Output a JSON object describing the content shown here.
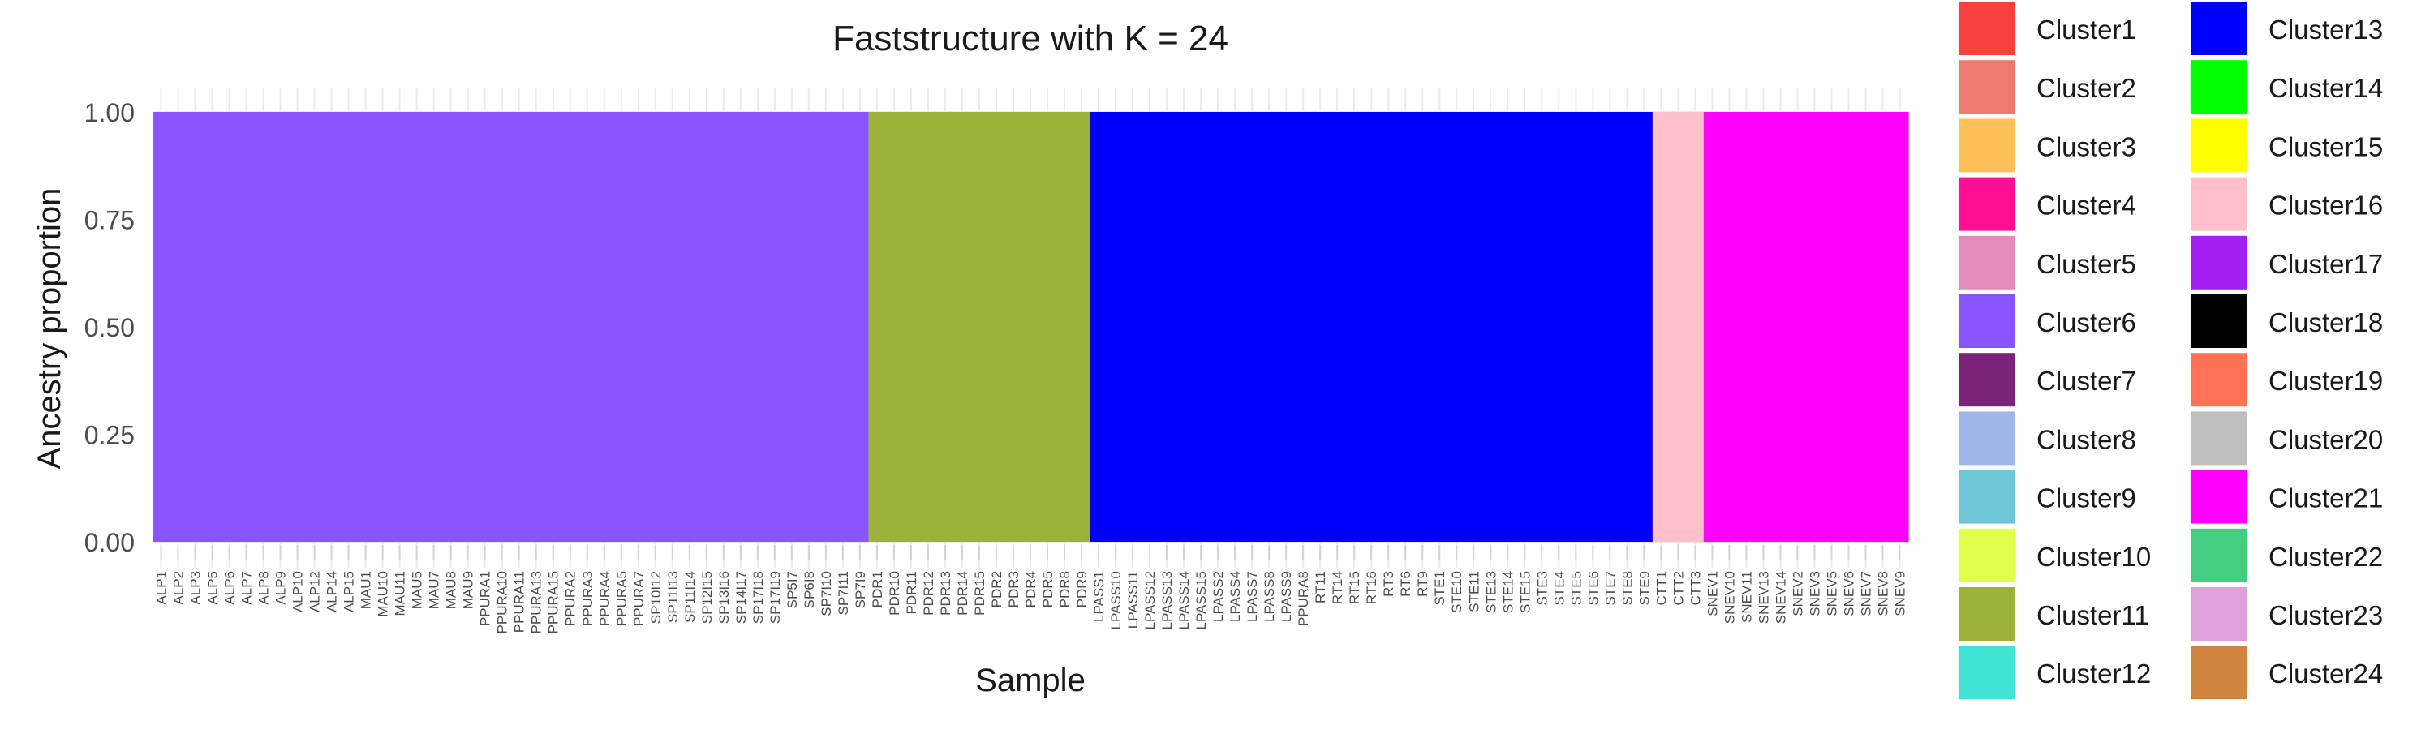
{
  "chart_data": {
    "type": "bar",
    "title": "Faststructure with K = 24",
    "xlabel": "Sample",
    "ylabel": "Ancestry proportion",
    "ylim": [
      0,
      1
    ],
    "yticks": [
      "0.00",
      "0.25",
      "0.50",
      "0.75",
      "1.00"
    ],
    "grid": true,
    "legend_position": "right",
    "stacked": true,
    "clusters": [
      {
        "name": "Cluster1",
        "color": "#F8413C"
      },
      {
        "name": "Cluster2",
        "color": "#EB7B70"
      },
      {
        "name": "Cluster3",
        "color": "#FFC05A"
      },
      {
        "name": "Cluster4",
        "color": "#FF0F92"
      },
      {
        "name": "Cluster5",
        "color": "#E58BBC"
      },
      {
        "name": "Cluster6",
        "color": "#8754FF"
      },
      {
        "name": "Cluster7",
        "color": "#7A2378"
      },
      {
        "name": "Cluster8",
        "color": "#A2B6EC"
      },
      {
        "name": "Cluster9",
        "color": "#6EC6D6"
      },
      {
        "name": "Cluster10",
        "color": "#E1FF4C"
      },
      {
        "name": "Cluster11",
        "color": "#9DB239"
      },
      {
        "name": "Cluster12",
        "color": "#40E2D3"
      },
      {
        "name": "Cluster13",
        "color": "#0000FF"
      },
      {
        "name": "Cluster14",
        "color": "#00FF00"
      },
      {
        "name": "Cluster15",
        "color": "#FFFF00"
      },
      {
        "name": "Cluster16",
        "color": "#FFC0CB"
      },
      {
        "name": "Cluster17",
        "color": "#A020F0"
      },
      {
        "name": "Cluster18",
        "color": "#000000"
      },
      {
        "name": "Cluster19",
        "color": "#FF7256"
      },
      {
        "name": "Cluster20",
        "color": "#BEBEBE"
      },
      {
        "name": "Cluster21",
        "color": "#FF00FF"
      },
      {
        "name": "Cluster22",
        "color": "#43CD80"
      },
      {
        "name": "Cluster23",
        "color": "#DDA0DD"
      },
      {
        "name": "Cluster24",
        "color": "#CD853F"
      }
    ],
    "groups": [
      {
        "cluster": "Cluster6",
        "samples": [
          "ALP1",
          "ALP2",
          "ALP3",
          "ALP5",
          "ALP6",
          "ALP7",
          "ALP8",
          "ALP9",
          "ALP10",
          "ALP12",
          "ALP14",
          "ALP15",
          "MAU1",
          "MAU10",
          "MAU11",
          "MAU5",
          "MAU7",
          "MAU8",
          "MAU9",
          "PPURA1",
          "PPURA10",
          "PPURA11",
          "PPURA13",
          "PPURA15",
          "PPURA2",
          "PPURA3",
          "PPURA4",
          "PPURA5",
          "PPURA7",
          "SP10I12",
          "SP11I13",
          "SP11I14",
          "SP12I15",
          "SP13I16",
          "SP14I17",
          "SP17I18",
          "SP17I19",
          "SP5I7",
          "SP6I8",
          "SP7I10",
          "SP7I11",
          "SP7I9"
        ]
      },
      {
        "cluster": "Cluster11",
        "samples": [
          "PDR1",
          "PDR10",
          "PDR11",
          "PDR12",
          "PDR13",
          "PDR14",
          "PDR15",
          "PDR2",
          "PDR3",
          "PDR4",
          "PDR5",
          "PDR8",
          "PDR9"
        ]
      },
      {
        "cluster": "Cluster13",
        "samples": [
          "LPASS1",
          "LPASS10",
          "LPASS11",
          "LPASS12",
          "LPASS13",
          "LPASS14",
          "LPASS15",
          "LPASS2",
          "LPASS4",
          "LPASS7",
          "LPASS8",
          "LPASS9",
          "PPURA8",
          "RT11",
          "RT14",
          "RT15",
          "RT16",
          "RT3",
          "RT6",
          "RT9",
          "STE1",
          "STE10",
          "STE11",
          "STE13",
          "STE14",
          "STE15",
          "STE3",
          "STE4",
          "STE5",
          "STE6",
          "STE7",
          "STE8",
          "STE9"
        ]
      },
      {
        "cluster": "Cluster16",
        "samples": [
          "CTT1",
          "CTT2",
          "CTT3"
        ]
      },
      {
        "cluster": "Cluster21",
        "samples": [
          "SNEV1",
          "SNEV10",
          "SNEV11",
          "SNEV13",
          "SNEV14",
          "SNEV2",
          "SNEV3",
          "SNEV5",
          "SNEV6",
          "SNEV7",
          "SNEV8",
          "SNEV9"
        ]
      }
    ]
  }
}
